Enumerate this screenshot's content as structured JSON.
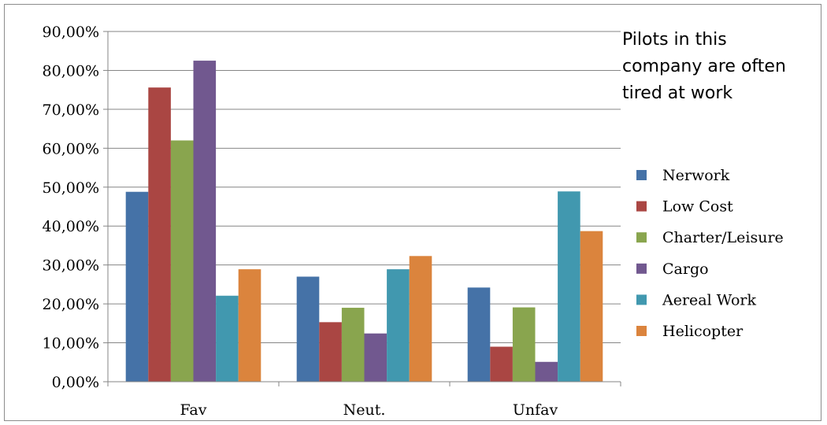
{
  "chart_data": {
    "type": "bar",
    "title": "Pilots in this company are often tired at work",
    "title_lines": [
      "Pilots in this",
      "company are often",
      "tired at work"
    ],
    "categories": [
      "Fav",
      "Neut.",
      "Unfav"
    ],
    "series": [
      {
        "name": "Nerwork",
        "color": "#4572a7",
        "values": [
          48.8,
          27.0,
          24.2
        ]
      },
      {
        "name": "Low Cost",
        "color": "#aa4643",
        "values": [
          75.6,
          15.3,
          9.0
        ]
      },
      {
        "name": "Charter/Leisure",
        "color": "#89a54e",
        "values": [
          62.0,
          19.0,
          19.1
        ]
      },
      {
        "name": "Cargo",
        "color": "#71588f",
        "values": [
          82.5,
          12.4,
          5.1
        ]
      },
      {
        "name": "Aereal Work",
        "color": "#4198af",
        "values": [
          22.1,
          28.9,
          48.9
        ]
      },
      {
        "name": "Helicopter",
        "color": "#db843d",
        "values": [
          28.9,
          32.3,
          38.7
        ]
      }
    ],
    "ylim": [
      0,
      90
    ],
    "ytick_step": 10,
    "ytick_labels": [
      "0,00%",
      "10,00%",
      "20,00%",
      "30,00%",
      "40,00%",
      "50,00%",
      "60,00%",
      "70,00%",
      "80,00%",
      "90,00%"
    ],
    "xlabel": "",
    "ylabel": "",
    "grid": true,
    "legend_position": "right"
  }
}
